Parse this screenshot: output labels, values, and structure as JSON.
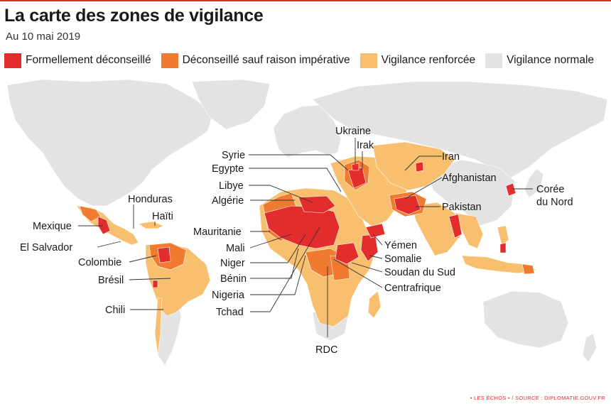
{
  "header": {
    "title": "La carte des zones de vigilance",
    "subtitle": "Au 10 mai 2019"
  },
  "legend": [
    {
      "label": "Formellement déconseillé",
      "color": "#e32d2d"
    },
    {
      "label": "Déconseillé sauf raison impérative",
      "color": "#f07a2f"
    },
    {
      "label": "Vigilance renforcée",
      "color": "#f7bf6e"
    },
    {
      "label": "Vigilance normale",
      "color": "#e3e3e3"
    }
  ],
  "colors": {
    "red": "#e32d2d",
    "orange": "#f07a2f",
    "light_orange": "#f7bf6e",
    "grey": "#e3e3e3",
    "leader_line": "#333333"
  },
  "labels": {
    "honduras": "Honduras",
    "haiti": "Haïti",
    "mexique": "Mexique",
    "el_salvador": "El Salvador",
    "colombie": "Colombie",
    "bresil": "Brésil",
    "chili": "Chili",
    "syrie": "Syrie",
    "egypte": "Egypte",
    "libye": "Libye",
    "algerie": "Algérie",
    "mauritanie": "Mauritanie",
    "mali": "Mali",
    "niger": "Niger",
    "benin": "Bénin",
    "nigeria": "Nigeria",
    "tchad": "Tchad",
    "rdc": "RDC",
    "ukraine": "Ukraine",
    "irak": "Irak",
    "iran": "Iran",
    "afghanistan": "Afghanistan",
    "pakistan": "Pakistan",
    "yemen": "Yémen",
    "somalie": "Somalie",
    "soudan_du_sud": "Soudan du Sud",
    "centrafrique": "Centrafrique",
    "coree_line1": "Corée",
    "coree_line2": "du Nord"
  },
  "footer": {
    "source": "• LES ÉCHOS • / SOURCE : DIPLOMATIE.GOUV.FR"
  }
}
